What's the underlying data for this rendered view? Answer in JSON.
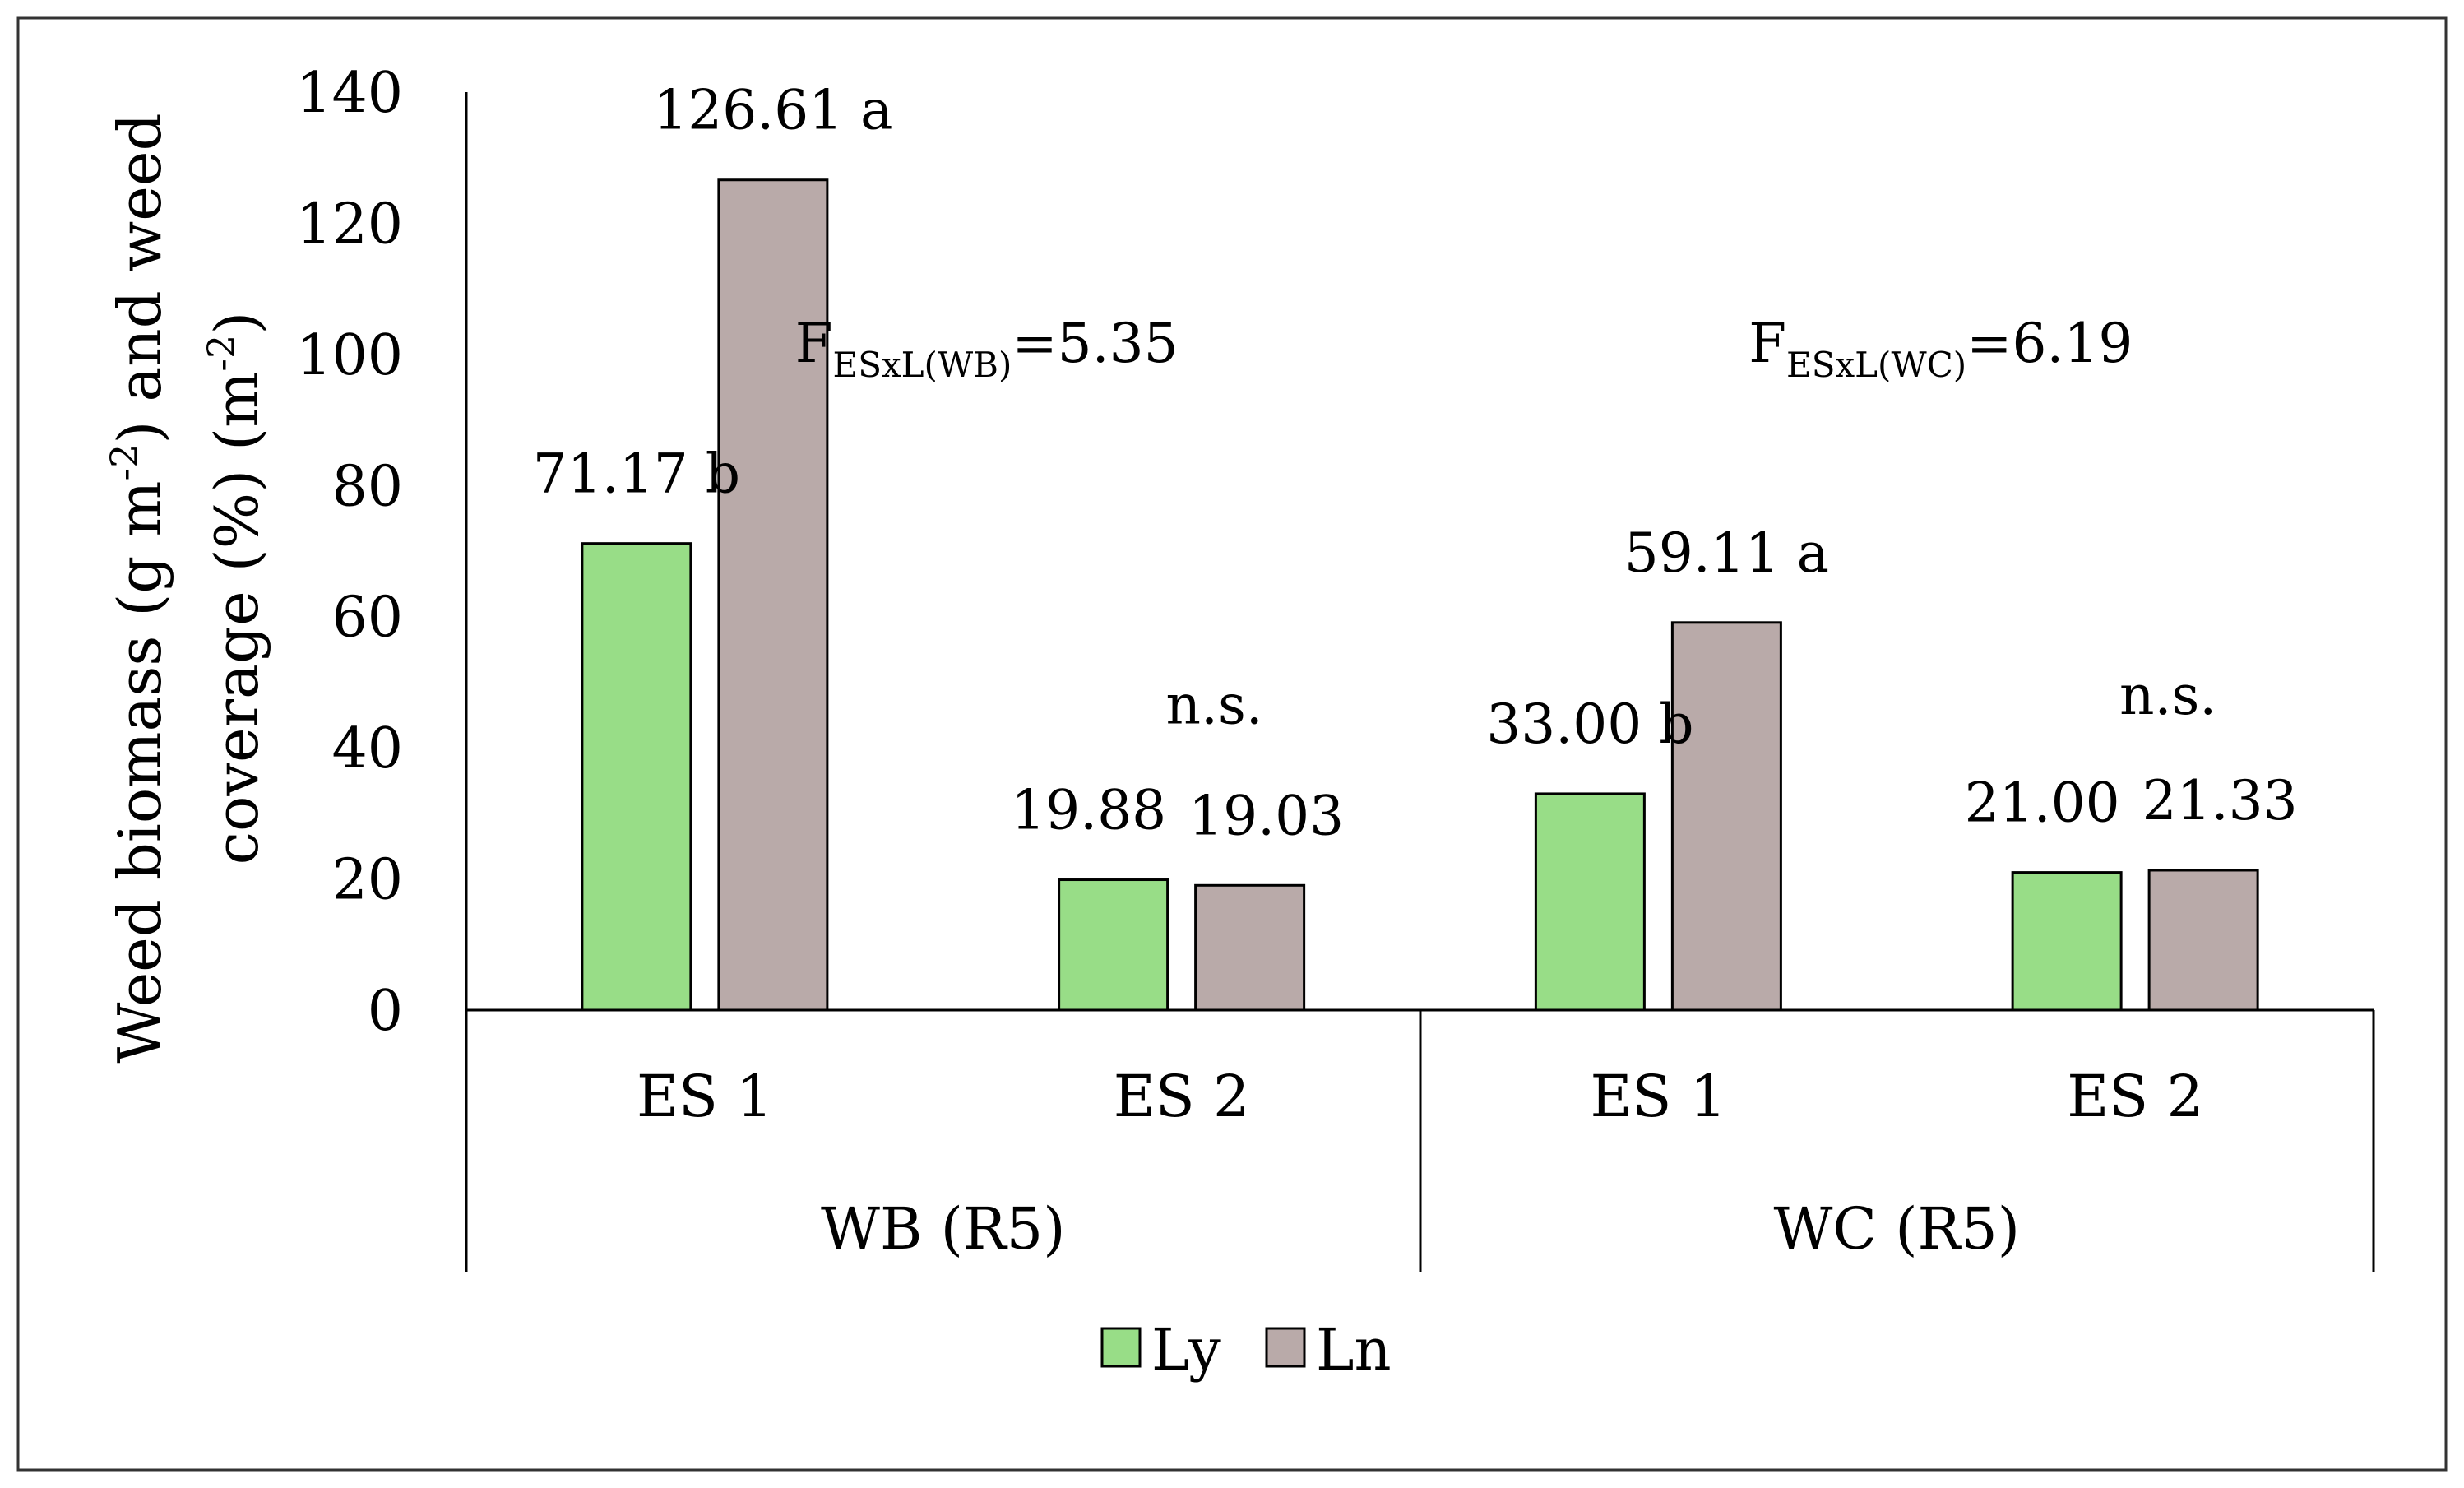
{
  "chart_data": {
    "type": "bar",
    "ylabel_line1": "Weed biomass (g m",
    "ylabel_sup1": "-2",
    "ylabel_mid1": ") and weed",
    "ylabel_line2": "coverage (%) (m",
    "ylabel_sup2": "-2",
    "ylabel_end2": ")",
    "ylim": [
      0,
      140
    ],
    "yticks": [
      0,
      20,
      40,
      60,
      80,
      100,
      120,
      140
    ],
    "groups": [
      {
        "name": "WB (R5)",
        "f_prefix": "F",
        "f_sub": "ESxL(WB)",
        "f_value": "=5.35",
        "categories": [
          {
            "name": "ES 1",
            "values": [
              71.17,
              126.61
            ],
            "labels": [
              "71.17 b",
              "126.61 a"
            ],
            "note": ""
          },
          {
            "name": "ES 2",
            "values": [
              19.88,
              19.03
            ],
            "labels": [
              "19.88",
              "19.03"
            ],
            "note": "n.s."
          }
        ]
      },
      {
        "name": "WC (R5)",
        "f_prefix": "F",
        "f_sub": "ESxL(WC)",
        "f_value": "=6.19",
        "categories": [
          {
            "name": "ES 1",
            "values": [
              33.0,
              59.11
            ],
            "labels": [
              "33.00 b",
              "59.11 a"
            ],
            "note": ""
          },
          {
            "name": "ES 2",
            "values": [
              21.0,
              21.33
            ],
            "labels": [
              "21.00",
              "21.33"
            ],
            "note": "n.s."
          }
        ]
      }
    ],
    "series": [
      {
        "name": "Ly",
        "color": "#98dd87"
      },
      {
        "name": "Ln",
        "color": "#b9aaa9"
      }
    ],
    "legend_position": "bottom"
  }
}
